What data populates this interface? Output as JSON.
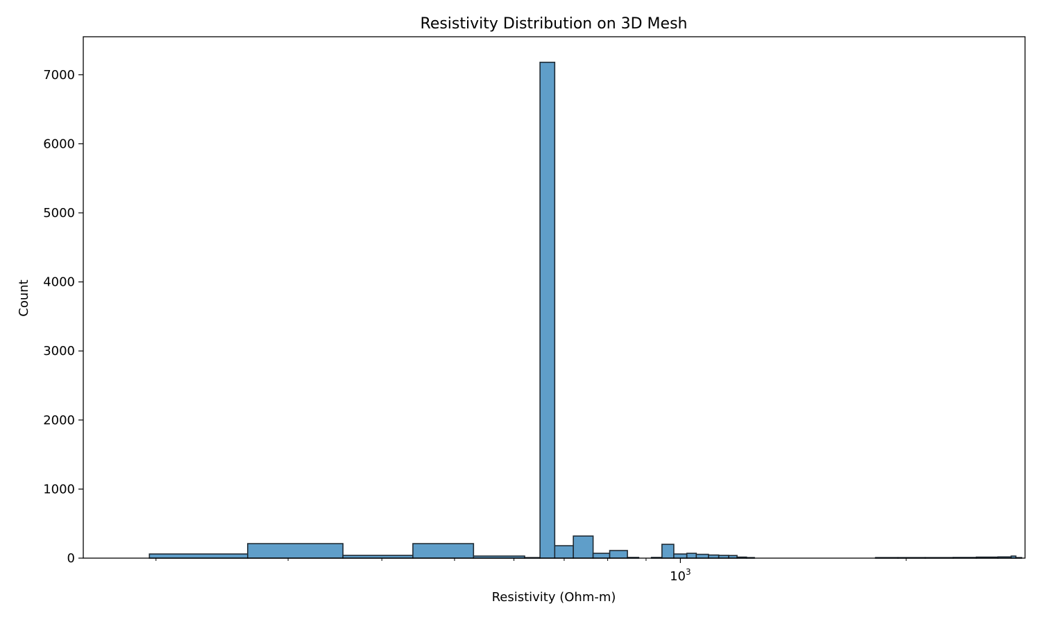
{
  "chart_data": {
    "type": "bar",
    "title": "Resistivity Distribution on 3D Mesh",
    "xlabel": "Resistivity (Ohm-m)",
    "ylabel": "Count",
    "xscale": "log",
    "xlim": [
      160,
      2880
    ],
    "ylim": [
      0,
      7550
    ],
    "bar_color": "#5f9ec9",
    "edge_color": "#1f2a33",
    "grid": false,
    "yticks": [
      {
        "value": 0,
        "label": "0"
      },
      {
        "value": 1000,
        "label": "1000"
      },
      {
        "value": 2000,
        "label": "2000"
      },
      {
        "value": 3000,
        "label": "3000"
      },
      {
        "value": 4000,
        "label": "4000"
      },
      {
        "value": 5000,
        "label": "5000"
      },
      {
        "value": 6000,
        "label": "6000"
      },
      {
        "value": 7000,
        "label": "7000"
      }
    ],
    "xticks_major": [
      {
        "value": 1000,
        "base": "10",
        "exp": "3"
      }
    ],
    "xticks_minor": [
      200,
      300,
      400,
      500,
      600,
      700,
      800,
      900,
      2000
    ],
    "bins": [
      {
        "x0": 196,
        "x1": 265,
        "count": 60
      },
      {
        "x0": 265,
        "x1": 355,
        "count": 210
      },
      {
        "x0": 355,
        "x1": 440,
        "count": 40
      },
      {
        "x0": 440,
        "x1": 530,
        "count": 210
      },
      {
        "x0": 530,
        "x1": 620,
        "count": 30
      },
      {
        "x0": 620,
        "x1": 650,
        "count": 8
      },
      {
        "x0": 650,
        "x1": 680,
        "count": 7180
      },
      {
        "x0": 680,
        "x1": 720,
        "count": 180
      },
      {
        "x0": 720,
        "x1": 765,
        "count": 320
      },
      {
        "x0": 765,
        "x1": 805,
        "count": 70
      },
      {
        "x0": 805,
        "x1": 850,
        "count": 110
      },
      {
        "x0": 850,
        "x1": 880,
        "count": 10
      },
      {
        "x0": 915,
        "x1": 945,
        "count": 10
      },
      {
        "x0": 945,
        "x1": 980,
        "count": 200
      },
      {
        "x0": 980,
        "x1": 1020,
        "count": 60
      },
      {
        "x0": 1020,
        "x1": 1050,
        "count": 70
      },
      {
        "x0": 1050,
        "x1": 1090,
        "count": 55
      },
      {
        "x0": 1090,
        "x1": 1125,
        "count": 45
      },
      {
        "x0": 1125,
        "x1": 1160,
        "count": 40
      },
      {
        "x0": 1160,
        "x1": 1190,
        "count": 38
      },
      {
        "x0": 1190,
        "x1": 1225,
        "count": 15
      },
      {
        "x0": 1225,
        "x1": 1255,
        "count": 8
      },
      {
        "x0": 1820,
        "x1": 1950,
        "count": 8
      },
      {
        "x0": 1950,
        "x1": 2120,
        "count": 8
      },
      {
        "x0": 2120,
        "x1": 2310,
        "count": 8
      },
      {
        "x0": 2310,
        "x1": 2480,
        "count": 10
      },
      {
        "x0": 2480,
        "x1": 2650,
        "count": 15
      },
      {
        "x0": 2650,
        "x1": 2760,
        "count": 18
      },
      {
        "x0": 2760,
        "x1": 2800,
        "count": 30
      },
      {
        "x0": 2800,
        "x1": 2850,
        "count": 8
      }
    ]
  }
}
